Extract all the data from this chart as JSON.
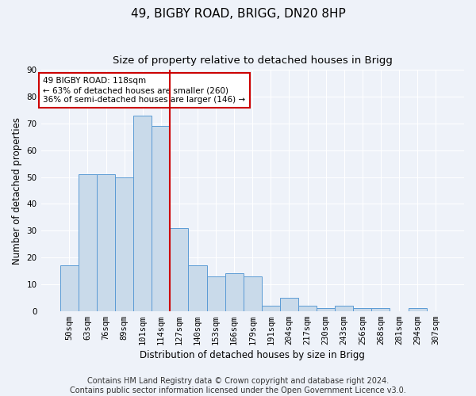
{
  "title": "49, BIGBY ROAD, BRIGG, DN20 8HP",
  "subtitle": "Size of property relative to detached houses in Brigg",
  "xlabel": "Distribution of detached houses by size in Brigg",
  "ylabel": "Number of detached properties",
  "categories": [
    "50sqm",
    "63sqm",
    "76sqm",
    "89sqm",
    "101sqm",
    "114sqm",
    "127sqm",
    "140sqm",
    "153sqm",
    "166sqm",
    "179sqm",
    "191sqm",
    "204sqm",
    "217sqm",
    "230sqm",
    "243sqm",
    "256sqm",
    "268sqm",
    "281sqm",
    "294sqm",
    "307sqm"
  ],
  "values": [
    17,
    51,
    51,
    50,
    73,
    69,
    31,
    17,
    13,
    14,
    13,
    2,
    5,
    2,
    1,
    2,
    1,
    1,
    0,
    1,
    0
  ],
  "bar_color": "#c9daea",
  "bar_edge_color": "#5b9bd5",
  "bar_width": 1.0,
  "vline_x": 5.5,
  "vline_color": "#cc0000",
  "annotation_text": "49 BIGBY ROAD: 118sqm\n← 63% of detached houses are smaller (260)\n36% of semi-detached houses are larger (146) →",
  "annotation_box_color": "white",
  "annotation_box_edge": "#cc0000",
  "ylim": [
    0,
    90
  ],
  "yticks": [
    0,
    10,
    20,
    30,
    40,
    50,
    60,
    70,
    80,
    90
  ],
  "background_color": "#eef2f9",
  "grid_color": "white",
  "footer": "Contains HM Land Registry data © Crown copyright and database right 2024.\nContains public sector information licensed under the Open Government Licence v3.0.",
  "title_fontsize": 11,
  "subtitle_fontsize": 9.5,
  "axis_label_fontsize": 8.5,
  "tick_fontsize": 7.5,
  "footer_fontsize": 7,
  "annotation_fontsize": 7.5
}
